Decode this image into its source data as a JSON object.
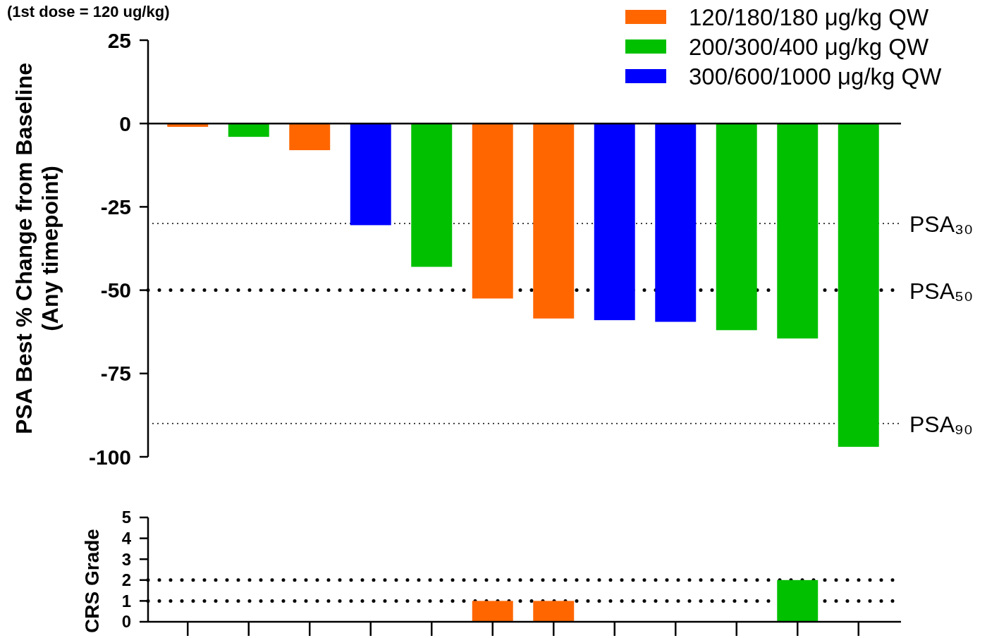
{
  "chart_data": [
    {
      "type": "bar",
      "ylabel": "PSA Best % Change from Baseline\n(Any timepoint)",
      "annotations": [
        "(1st dose = 120 ug/kg)"
      ],
      "categories": [
        null,
        null,
        null,
        null,
        null,
        null,
        null,
        null,
        null,
        null,
        null,
        null
      ],
      "series": [
        {
          "name": "120/180/180 μg/kg QW",
          "color": "#ff6600",
          "values": [
            -1,
            null,
            -8,
            null,
            null,
            -52.5,
            -58.5,
            null,
            null,
            null,
            null,
            null
          ]
        },
        {
          "name": "200/300/400 μg/kg QW",
          "color": "#00c000",
          "values": [
            null,
            -4,
            null,
            null,
            -43,
            null,
            null,
            null,
            null,
            -62,
            -64.5,
            -97
          ]
        },
        {
          "name": "300/600/1000 μg/kg QW",
          "color": "#0000ff",
          "values": [
            null,
            null,
            null,
            -30.5,
            null,
            null,
            null,
            -59,
            -59.5,
            null,
            null,
            null
          ]
        }
      ],
      "ylim": [
        -100,
        25
      ],
      "yticks": [
        25,
        0,
        -25,
        -50,
        -75,
        -100
      ],
      "legend": "top right",
      "tick_labels": "y",
      "ref_lines": [
        {
          "axis": "y",
          "value": -30,
          "label": "PSA₃₀",
          "line_style": "dotted"
        },
        {
          "axis": "y",
          "value": -50,
          "label": "PSA₅₀",
          "line_style": "dotted"
        },
        {
          "axis": "y",
          "value": -90,
          "label": "PSA₉₀",
          "line_style": "dotted"
        }
      ]
    },
    {
      "type": "bar",
      "ylabel": "CRS Grade",
      "categories": [
        null,
        null,
        null,
        null,
        null,
        null,
        null,
        null,
        null,
        null,
        null,
        null
      ],
      "values": [
        0,
        0,
        0,
        0,
        0,
        1,
        1,
        0,
        0,
        0,
        2,
        0
      ],
      "colors": [
        "#ff6600",
        "#00c000",
        "#ff6600",
        "#0000ff",
        "#00c000",
        "#ff6600",
        "#ff6600",
        "#0000ff",
        "#0000ff",
        "#00c000",
        "#00c000",
        "#00c000"
      ],
      "ylim": [
        0,
        5
      ],
      "yticks": [
        0,
        1,
        2,
        3,
        4,
        5
      ],
      "tick_labels": "y",
      "ref_lines": [
        {
          "axis": "y",
          "value": 2,
          "line_style": "dotted"
        },
        {
          "axis": "y",
          "value": 1,
          "line_style": "dotted"
        }
      ]
    }
  ]
}
